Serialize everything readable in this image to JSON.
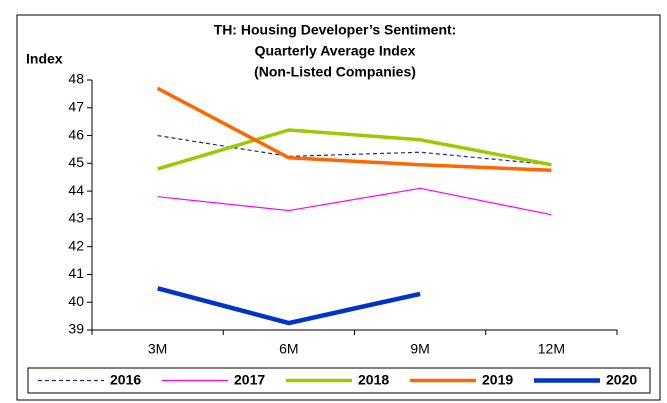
{
  "chart_data": {
    "type": "line",
    "title": [
      "TH: Housing Developer’s Sentiment:",
      "Quarterly Average Index",
      "(Non-Listed Companies)"
    ],
    "y_label": "Index",
    "categories": [
      "3M",
      "6M",
      "9M",
      "12M"
    ],
    "series": [
      {
        "name": "2016",
        "color": "#1f2a7a",
        "width": 1.2,
        "dashed": true,
        "values": [
          46.0,
          45.25,
          45.4,
          44.95
        ]
      },
      {
        "name": "2017",
        "color": "#ff00ff",
        "width": 1.2,
        "dashed": false,
        "values": [
          43.8,
          43.3,
          44.1,
          43.15
        ]
      },
      {
        "name": "2018",
        "color": "#99cc00",
        "width": 3.5,
        "dashed": false,
        "values": [
          44.8,
          46.2,
          45.85,
          44.95
        ]
      },
      {
        "name": "2019",
        "color": "#ff6600",
        "width": 3.5,
        "dashed": false,
        "values": [
          47.7,
          45.2,
          44.95,
          44.75
        ]
      },
      {
        "name": "2020",
        "color": "#0033cc",
        "width": 4.5,
        "dashed": false,
        "values": [
          40.5,
          39.25,
          40.3,
          null
        ]
      }
    ],
    "ylim": [
      39,
      48
    ],
    "yticks": [
      39,
      40,
      41,
      42,
      43,
      44,
      45,
      46,
      47,
      48
    ]
  }
}
